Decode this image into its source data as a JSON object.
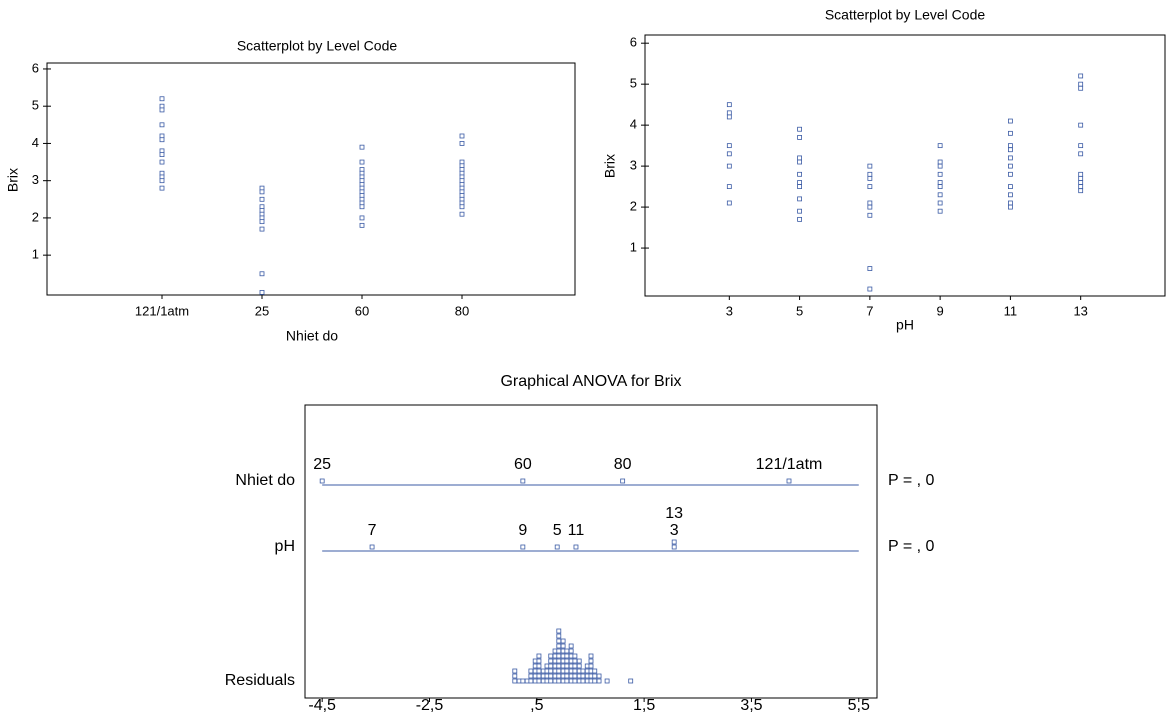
{
  "chart_data": [
    {
      "type": "category_scatter",
      "title": "Scatterplot by Level Code",
      "x_label": "Nhiet do",
      "y_label": "Brix",
      "color": "#3b5ba5",
      "categories": [
        "121/1atm",
        "25",
        "60",
        "80"
      ],
      "values": [
        [
          5.2,
          5.0,
          4.9,
          4.5,
          4.2,
          4.1,
          3.8,
          3.7,
          3.5,
          3.2,
          3.1,
          3.0,
          2.8
        ],
        [
          2.8,
          2.7,
          2.5,
          2.3,
          2.2,
          2.1,
          2.0,
          1.9,
          1.7,
          0.5,
          0.0
        ],
        [
          3.9,
          3.5,
          3.3,
          3.2,
          3.1,
          3.0,
          2.9,
          2.8,
          2.7,
          2.6,
          2.5,
          2.4,
          2.3,
          2.0,
          1.8
        ],
        [
          4.2,
          4.0,
          3.5,
          3.4,
          3.3,
          3.2,
          3.1,
          3.0,
          2.9,
          2.8,
          2.7,
          2.6,
          2.5,
          2.4,
          2.3,
          2.1
        ]
      ],
      "ylim": [
        -0.07,
        6.16
      ],
      "yticks": [
        1,
        2,
        3,
        4,
        5,
        6
      ]
    },
    {
      "type": "scatter",
      "title": "Scatterplot by Level Code",
      "x_label": "pH",
      "y_label": "Brix",
      "color": "#3b5ba5",
      "x": [
        3,
        5,
        7,
        9,
        11,
        13
      ],
      "values": [
        [
          4.5,
          4.3,
          4.2,
          3.5,
          3.3,
          3.0,
          2.5,
          2.1
        ],
        [
          3.9,
          3.7,
          3.2,
          3.1,
          2.8,
          2.6,
          2.5,
          2.2,
          1.9,
          1.7
        ],
        [
          3.0,
          2.8,
          2.7,
          2.5,
          2.1,
          2.0,
          1.8,
          0.5,
          0.0
        ],
        [
          3.5,
          3.1,
          3.0,
          2.8,
          2.6,
          2.5,
          2.3,
          2.1,
          1.9
        ],
        [
          4.1,
          3.8,
          3.5,
          3.4,
          3.2,
          3.0,
          2.8,
          2.5,
          2.3,
          2.1,
          2.0
        ],
        [
          5.2,
          5.0,
          4.9,
          4.0,
          3.5,
          3.3,
          2.8,
          2.7,
          2.6,
          2.5,
          2.4
        ]
      ],
      "xlim": [
        0.6,
        15.4
      ],
      "xticks": [
        3,
        5,
        7,
        9,
        11,
        13
      ],
      "ylim": [
        -0.17,
        6.2
      ],
      "yticks": [
        1,
        2,
        3,
        4,
        5,
        6
      ]
    },
    {
      "type": "graphical_anova",
      "title": "Graphical ANOVA for Brix",
      "color": "#3b5ba5",
      "rows": [
        {
          "name": "Nhiet do",
          "labels": [
            "25",
            "60",
            "80",
            "121/1atm"
          ],
          "values": [
            -4.5,
            -0.76,
            1.1,
            4.2
          ],
          "p_label": "P =  ,   0"
        },
        {
          "name": "pH",
          "labels": [
            "7",
            "9",
            "5",
            "11",
            "3",
            "13"
          ],
          "values": [
            -3.57,
            -0.76,
            -0.12,
            0.23,
            2.06,
            2.06
          ],
          "p_label": "P =  ,   0"
        }
      ],
      "residuals_name": "Residuals",
      "residual_x": [
        -0.91,
        -0.83,
        -0.76,
        -0.68,
        -0.61,
        -0.53,
        -0.46,
        -0.38,
        -0.31,
        -0.24,
        -0.16,
        -0.09,
        -0.01,
        0.06,
        0.14,
        0.21,
        0.29,
        0.36,
        0.44,
        0.51,
        0.58,
        0.66,
        0.81,
        1.25
      ],
      "residual_counts": [
        3,
        1,
        1,
        1,
        3,
        5,
        6,
        3,
        4,
        6,
        7,
        11,
        9,
        7,
        8,
        6,
        5,
        3,
        4,
        6,
        3,
        2,
        1,
        1
      ],
      "xlim": [
        -4.82,
        5.84
      ],
      "xticks": [
        {
          "value": -4.5,
          "label": "-4,5"
        },
        {
          "value": -2.5,
          "label": "-2,5"
        },
        {
          "value": -0.5,
          "label": ",5"
        },
        {
          "value": 1.5,
          "label": "1,5"
        },
        {
          "value": 3.5,
          "label": "3,5"
        },
        {
          "value": 5.5,
          "label": "5,5"
        }
      ]
    }
  ]
}
